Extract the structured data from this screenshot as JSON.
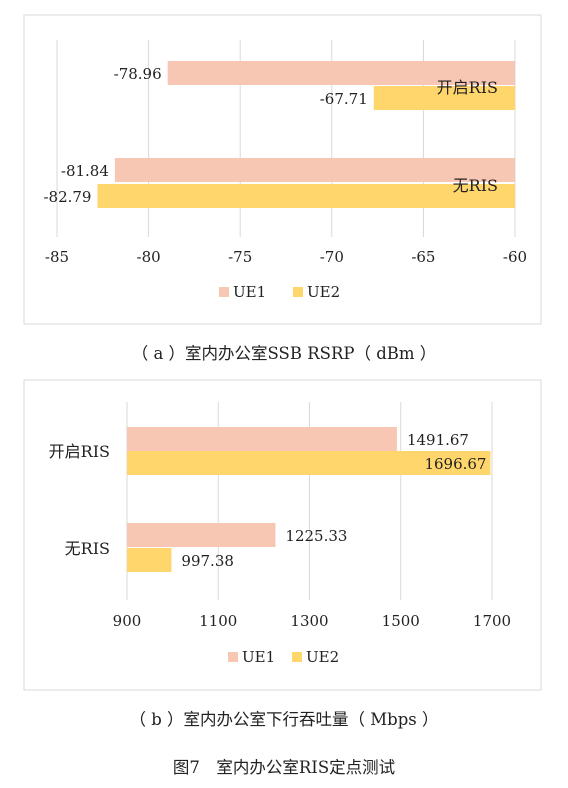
{
  "colors": {
    "ue1": "#F8C7B4",
    "ue2": "#FFD66B",
    "grid": "#D9D9D9",
    "frame": "#D9D9D9",
    "text": "#222222"
  },
  "chart_data": [
    {
      "type": "bar",
      "orientation": "horizontal",
      "categories": [
        "开启RIS",
        "无RIS"
      ],
      "series": [
        {
          "name": "UE1",
          "values": [
            -78.96,
            -81.84
          ]
        },
        {
          "name": "UE2",
          "values": [
            -67.71,
            -82.79
          ]
        }
      ],
      "xlim": [
        -85,
        -60
      ],
      "xticks": [
        "-85",
        "-80",
        "-75",
        "-70",
        "-65",
        "-60"
      ],
      "grid": "vertical",
      "legend": "bottom",
      "caption": "（ a ）室内办公室SSB RSRP（ dBm ）"
    },
    {
      "type": "bar",
      "orientation": "horizontal",
      "categories": [
        "开启RIS",
        "无RIS"
      ],
      "series": [
        {
          "name": "UE1",
          "values": [
            1491.67,
            1225.33
          ]
        },
        {
          "name": "UE2",
          "values": [
            1696.67,
            997.38
          ]
        }
      ],
      "xlim": [
        900,
        1700
      ],
      "xticks": [
        "900",
        "1100",
        "1300",
        "1500",
        "1700"
      ],
      "grid": "vertical",
      "legend": "bottom",
      "caption": "（ b ）室内办公室下行吞吐量（ Mbps ）"
    }
  ],
  "figure_caption": "图7　室内办公室RIS定点测试"
}
